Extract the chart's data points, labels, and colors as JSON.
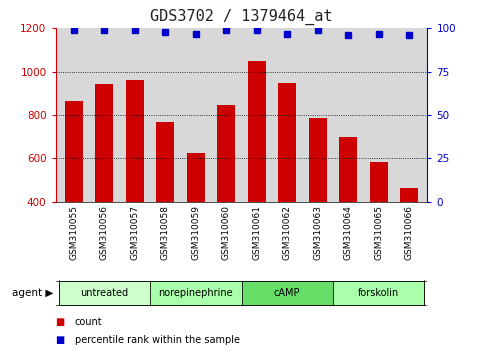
{
  "title": "GDS3702 / 1379464_at",
  "samples": [
    "GSM310055",
    "GSM310056",
    "GSM310057",
    "GSM310058",
    "GSM310059",
    "GSM310060",
    "GSM310061",
    "GSM310062",
    "GSM310063",
    "GSM310064",
    "GSM310065",
    "GSM310066"
  ],
  "counts": [
    865,
    945,
    960,
    770,
    625,
    845,
    1050,
    950,
    785,
    700,
    585,
    465
  ],
  "percentile": [
    99,
    99,
    99,
    98,
    97,
    99,
    99,
    97,
    99,
    96,
    97,
    96
  ],
  "bar_color": "#cc0000",
  "dot_color": "#0000cc",
  "ylim_left": [
    400,
    1200
  ],
  "ylim_right": [
    0,
    100
  ],
  "yticks_left": [
    400,
    600,
    800,
    1000,
    1200
  ],
  "yticks_right": [
    0,
    25,
    50,
    75,
    100
  ],
  "agents": [
    {
      "label": "untreated",
      "start": 0,
      "end": 3,
      "color": "#ccffcc"
    },
    {
      "label": "norepinephrine",
      "start": 3,
      "end": 6,
      "color": "#aaffaa"
    },
    {
      "label": "cAMP",
      "start": 6,
      "end": 9,
      "color": "#66dd66"
    },
    {
      "label": "forskolin",
      "start": 9,
      "end": 12,
      "color": "#aaffaa"
    }
  ],
  "legend_count_label": "count",
  "legend_pct_label": "percentile rank within the sample",
  "agent_label": "agent",
  "background_color": "#ffffff",
  "plot_bg_color": "#d8d8d8",
  "grid_color": "#000000",
  "title_fontsize": 11,
  "tick_fontsize": 7.5,
  "label_fontsize": 8
}
